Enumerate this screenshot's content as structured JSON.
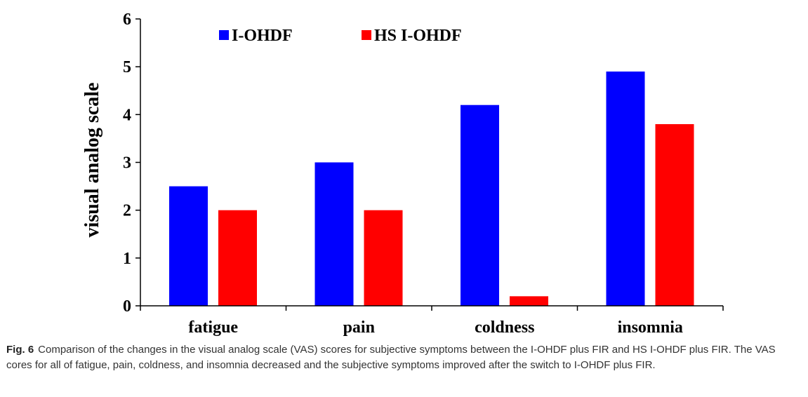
{
  "chart_data": {
    "type": "bar",
    "categories": [
      "fatigue",
      "pain",
      "coldness",
      "insomnia"
    ],
    "series": [
      {
        "name": "I-OHDF",
        "color": "#0000ff",
        "values": [
          2.5,
          3.0,
          4.2,
          4.9
        ]
      },
      {
        "name": "HS I-OHDF",
        "color": "#ff0000",
        "values": [
          2.0,
          2.0,
          0.2,
          3.8
        ]
      }
    ],
    "ylabel": "visual analog scale",
    "xlabel": "",
    "ylim": [
      0,
      6
    ],
    "yticks": [
      0,
      1,
      2,
      3,
      4,
      5,
      6
    ],
    "grid": false,
    "legend_position": "top"
  },
  "caption": {
    "label": "Fig. 6",
    "text": "Comparison of the changes in the visual analog scale (VAS) scores for subjective symptoms between the I-OHDF plus FIR and HS I-OHDF plus FIR. The VAS cores for all of fatigue, pain, coldness, and insomnia decreased and the subjective symptoms improved after the switch to I-OHDF plus FIR."
  }
}
